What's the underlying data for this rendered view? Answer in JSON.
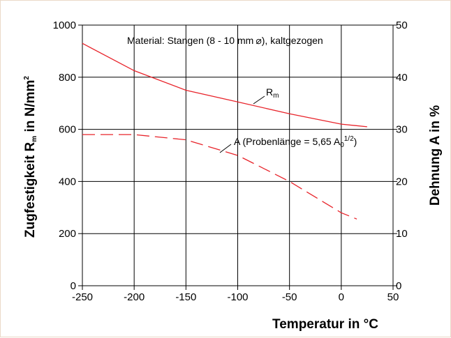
{
  "chart_data": {
    "type": "line",
    "title": "",
    "annotation": {
      "prefix": "Material: Stangen (",
      "range": "8 - 10 mm",
      "symbol": "⌀",
      "suffix": "), kaltgezogen"
    },
    "xlabel": "Temperatur in °C",
    "ylabel_left": {
      "main": "Zugfestigkeit  R",
      "sub": "m",
      "unit": " in N/mm",
      "sup": "2"
    },
    "ylabel_right": "Dehnung  A  in %",
    "xlim": [
      -250,
      50
    ],
    "ylim_left": [
      0,
      1000
    ],
    "ylim_right": [
      0,
      50
    ],
    "x_ticks": [
      "-250",
      "-200",
      "-150",
      "-100",
      "-50",
      "0",
      "50"
    ],
    "y_left_ticks": [
      "0",
      "200",
      "400",
      "600",
      "800",
      "1000"
    ],
    "y_right_ticks": [
      "0",
      "10",
      "20",
      "30",
      "40",
      "50"
    ],
    "grid": true,
    "series": [
      {
        "name": "R",
        "name_sub": "m",
        "axis": "left",
        "line_style": "solid",
        "color": "#e8232a",
        "x": [
          -250,
          -200,
          -150,
          -100,
          -50,
          0,
          25
        ],
        "y": [
          930,
          825,
          750,
          705,
          660,
          620,
          610
        ]
      },
      {
        "name": "A (Probenlänge = 5,65 A",
        "name_sub": "0",
        "name_sup": "1/2",
        "name_end": ")",
        "axis": "right",
        "line_style": "dashed",
        "color": "#e8232a",
        "x": [
          -250,
          -200,
          -150,
          -100,
          -50,
          0,
          15
        ],
        "y": [
          29,
          29,
          28,
          25,
          20,
          14,
          12.8
        ]
      }
    ]
  }
}
